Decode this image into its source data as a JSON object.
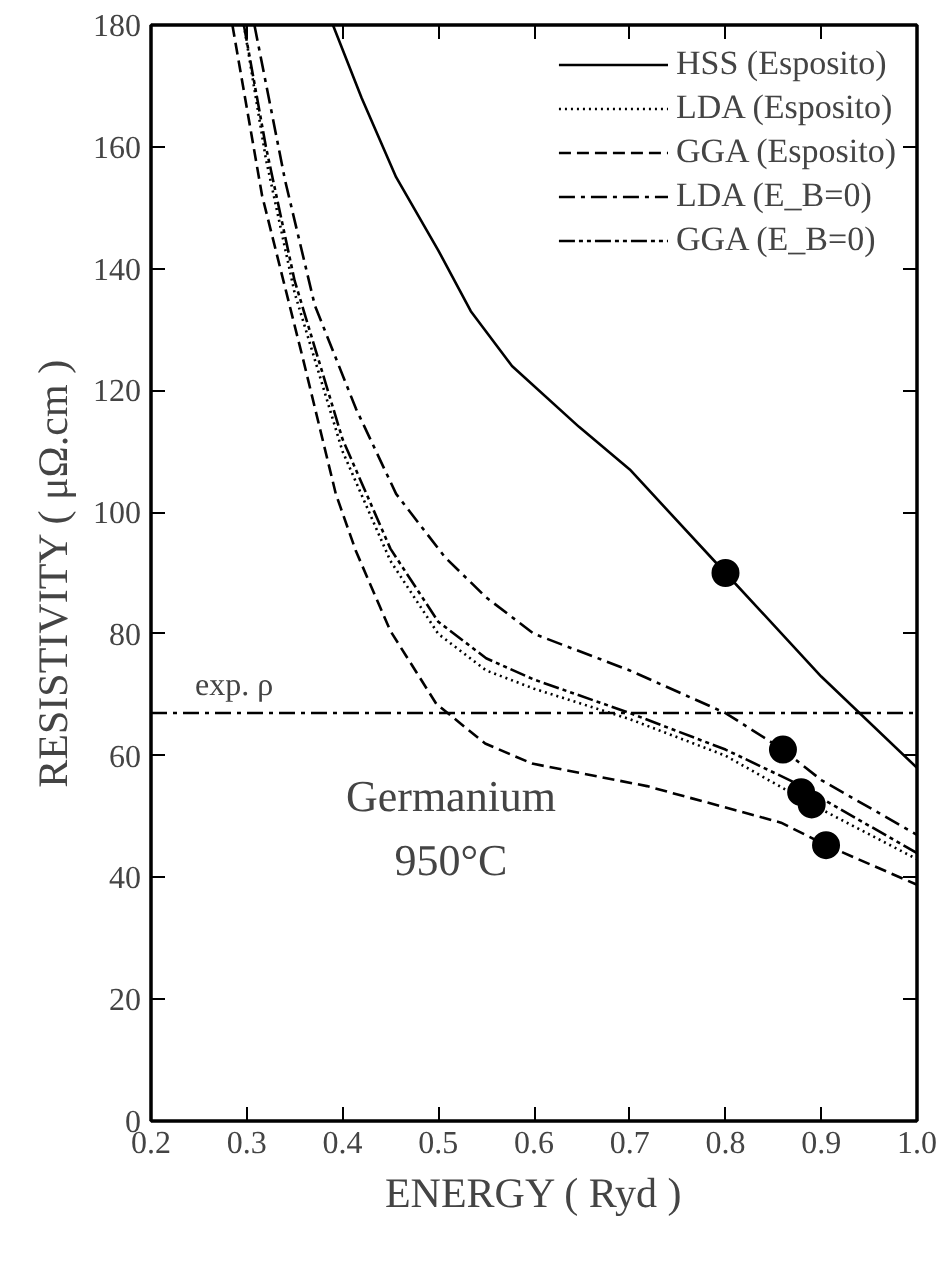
{
  "chart_data": {
    "type": "line",
    "xlabel": "ENERGY ( Ryd )",
    "ylabel": "RESISTIVITY ( μΩ.cm )",
    "xlim": [
      0.2,
      1.0
    ],
    "ylim": [
      0,
      180
    ],
    "xticks": [
      0.2,
      0.3,
      0.4,
      0.5,
      0.6,
      0.7,
      0.8,
      0.9,
      {
        "value": 1.0,
        "label": "1.0"
      }
    ],
    "yticks": [
      0,
      20,
      40,
      60,
      80,
      100,
      120,
      140,
      160,
      180
    ],
    "grid": false,
    "legend": "top right",
    "marker": "none",
    "series": [
      {
        "name": "HSS (Esposito)",
        "color": "#000000",
        "line_style": "solid",
        "x": [
          0.39,
          0.42,
          0.456,
          0.5,
          0.534,
          0.577,
          0.647,
          0.7,
          0.8,
          0.9,
          1.0
        ],
        "values": [
          180,
          168,
          155,
          143,
          133,
          124,
          114,
          107,
          90,
          73,
          58
        ]
      },
      {
        "name": "LDA (Esposito)",
        "color": "#000000",
        "line_style": "dotted",
        "x": [
          0.297,
          0.32,
          0.35,
          0.4,
          0.45,
          0.5,
          0.55,
          0.6,
          0.7,
          0.8,
          0.89,
          1.0
        ],
        "values": [
          180,
          158,
          136,
          110,
          92,
          80,
          74,
          71,
          66,
          60,
          52,
          43
        ]
      },
      {
        "name": "GGA (Esposito)",
        "color": "#000000",
        "line_style": "dashed",
        "x": [
          0.285,
          0.316,
          0.359,
          0.393,
          0.414,
          0.45,
          0.498,
          0.549,
          0.598,
          0.718,
          0.858,
          0.905,
          1.0
        ],
        "values": [
          180,
          152,
          125,
          103,
          93.6,
          80.5,
          68.5,
          62,
          58.7,
          55,
          49,
          45.3,
          38.8
        ]
      },
      {
        "name": "LDA (E_B=0)",
        "color": "#000000",
        "line_style": "dashdot",
        "x": [
          0.308,
          0.34,
          0.371,
          0.414,
          0.456,
          0.507,
          0.55,
          0.6,
          0.7,
          0.8,
          0.86,
          0.9,
          1.0
        ],
        "values": [
          180,
          154.5,
          134,
          117,
          103,
          92.6,
          86,
          80,
          74,
          67,
          61,
          56,
          47
        ]
      },
      {
        "name": "GGA (E_B=0)",
        "color": "#000000",
        "line_style": "dashdotdot",
        "x": [
          0.297,
          0.32,
          0.35,
          0.4,
          0.45,
          0.5,
          0.55,
          0.6,
          0.7,
          0.8,
          0.88,
          0.9,
          1.0
        ],
        "values": [
          180,
          160,
          138,
          112,
          94,
          82,
          76,
          72.5,
          67,
          61,
          55,
          53,
          44
        ]
      },
      {
        "type": "scatter",
        "marker": "circle",
        "color": "#000000",
        "x": [
          0.8,
          0.86,
          0.879,
          0.89,
          0.905
        ],
        "values": [
          90,
          61,
          54,
          52,
          45.3
        ]
      }
    ],
    "ref_lines": [
      {
        "axis": "y",
        "value": 67,
        "label": "exp. ρ",
        "line_style": "dashdot",
        "color": "#000000"
      }
    ],
    "annotations": [
      "Germanium",
      "950°C"
    ]
  }
}
